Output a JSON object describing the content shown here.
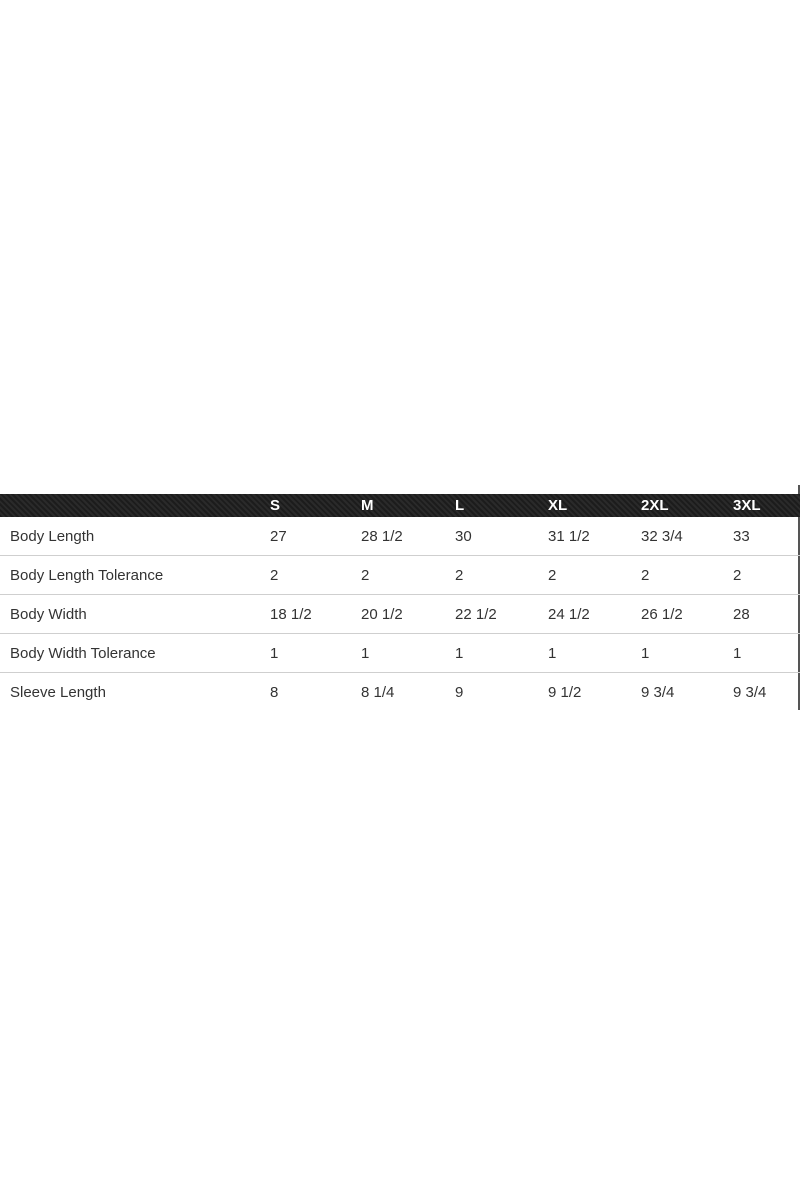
{
  "size_chart": {
    "columns": [
      "",
      "S",
      "M",
      "L",
      "XL",
      "2XL",
      "3XL"
    ],
    "rows": [
      [
        "Body Length",
        "27",
        "28 1/2",
        "30",
        "31 1/2",
        "32 3/4",
        "33"
      ],
      [
        "Body Length Tolerance",
        "2",
        "2",
        "2",
        "2",
        "2",
        "2"
      ],
      [
        "Body Width",
        "18 1/2",
        "20 1/2",
        "22 1/2",
        "24 1/2",
        "26 1/2",
        "28"
      ],
      [
        "Body Width Tolerance",
        "1",
        "1",
        "1",
        "1",
        "1",
        "1"
      ],
      [
        "Sleeve Length",
        "8",
        "8 1/4",
        "9",
        "9 1/2",
        "9 3/4",
        "9 3/4"
      ]
    ]
  }
}
